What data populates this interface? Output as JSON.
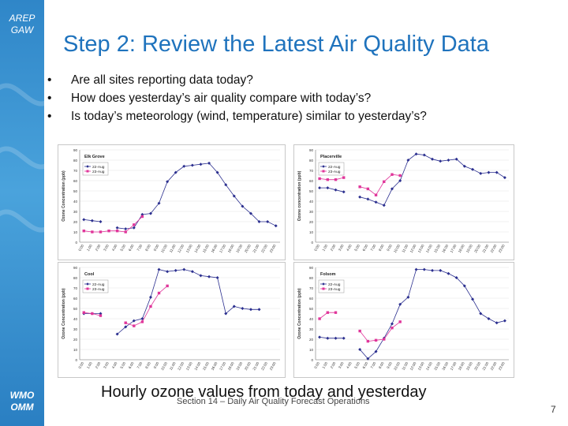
{
  "branding": {
    "top_logo": [
      "AREP",
      "GAW"
    ],
    "bottom_logo": [
      "WMO",
      "OMM"
    ]
  },
  "title": "Step 2:  Review the Latest Air Quality Data",
  "bullets": [
    "Are all sites reporting data today?",
    "How does yesterday’s air quality compare with today’s?",
    "Is today’s meteorology (wind, temperature) similar to yesterday’s?"
  ],
  "caption": "Hourly ozone values from today and yesterday",
  "footer": "Section 14 – Daily Air Quality Forecast Operations",
  "page_number": "7",
  "chart_data": [
    {
      "type": "line",
      "title": "Elk Grove",
      "ylabel": "Ozone Concentration (ppb)",
      "ylim": [
        0,
        90
      ],
      "yticks": [
        0,
        10,
        20,
        30,
        40,
        50,
        60,
        70,
        80,
        90
      ],
      "x": [
        "0:00",
        "1:00",
        "2:00",
        "3:00",
        "4:00",
        "5:00",
        "6:00",
        "7:00",
        "8:00",
        "9:00",
        "10:00",
        "11:00",
        "12:00",
        "13:00",
        "14:00",
        "15:00",
        "16:00",
        "17:00",
        "18:00",
        "19:00",
        "20:00",
        "21:00",
        "22:00",
        "23:00"
      ],
      "series": [
        {
          "name": "22-Aug",
          "color": "#2b2f8f",
          "marker": "diamond",
          "values": [
            22,
            21,
            20,
            null,
            14,
            13,
            14,
            27,
            28,
            38,
            59,
            68,
            74,
            75,
            76,
            77,
            68,
            56,
            45,
            35,
            28,
            20,
            20,
            16
          ]
        },
        {
          "name": "23-Aug",
          "color": "#e0359a",
          "marker": "square",
          "values": [
            11,
            10,
            10,
            11,
            11,
            10,
            17,
            25,
            null,
            null,
            null,
            null,
            null,
            null,
            null,
            null,
            null,
            null,
            null,
            null,
            null,
            null,
            null,
            null
          ]
        }
      ]
    },
    {
      "type": "line",
      "title": "Placerville",
      "ylabel": "Ozone concentration (ppb)",
      "ylim": [
        0,
        90
      ],
      "yticks": [
        0,
        10,
        20,
        30,
        40,
        50,
        60,
        70,
        80,
        90
      ],
      "x": [
        "0:00",
        "1:00",
        "2:00",
        "3:00",
        "4:00",
        "5:00",
        "6:00",
        "7:00",
        "8:00",
        "9:00",
        "10:00",
        "11:00",
        "12:00",
        "13:00",
        "14:00",
        "15:00",
        "16:00",
        "17:00",
        "18:00",
        "19:00",
        "20:00",
        "21:00",
        "22:00",
        "23:00"
      ],
      "series": [
        {
          "name": "22-Aug",
          "color": "#2b2f8f",
          "marker": "diamond",
          "values": [
            53,
            53,
            51,
            49,
            null,
            44,
            42,
            39,
            36,
            52,
            60,
            80,
            86,
            85,
            81,
            79,
            80,
            81,
            74,
            71,
            67,
            68,
            68,
            63
          ]
        },
        {
          "name": "23-Aug",
          "color": "#e0359a",
          "marker": "square",
          "values": [
            62,
            61,
            61,
            63,
            null,
            54,
            52,
            46,
            59,
            66,
            65,
            null,
            null,
            null,
            null,
            null,
            null,
            null,
            null,
            null,
            null,
            null,
            null,
            null
          ]
        }
      ]
    },
    {
      "type": "line",
      "title": "Cool",
      "ylabel": "Ozone Concentration (ppb)",
      "ylim": [
        0,
        90
      ],
      "yticks": [
        0,
        10,
        20,
        30,
        40,
        50,
        60,
        70,
        80,
        90
      ],
      "x": [
        "0:00",
        "1:00",
        "2:00",
        "3:00",
        "4:00",
        "5:00",
        "6:00",
        "7:00",
        "8:00",
        "9:00",
        "10:00",
        "11:00",
        "12:00",
        "13:00",
        "14:00",
        "15:00",
        "16:00",
        "17:00",
        "18:00",
        "19:00",
        "20:00",
        "21:00",
        "22:00",
        "23:00"
      ],
      "series": [
        {
          "name": "22-Aug",
          "color": "#2b2f8f",
          "marker": "diamond",
          "values": [
            45,
            45,
            45,
            null,
            25,
            32,
            38,
            40,
            61,
            88,
            86,
            87,
            88,
            86,
            82,
            81,
            80,
            45,
            52,
            50,
            49,
            49,
            null,
            null
          ]
        },
        {
          "name": "23-Aug",
          "color": "#e0359a",
          "marker": "square",
          "values": [
            46,
            45,
            43,
            null,
            null,
            36,
            33,
            37,
            52,
            65,
            72,
            null,
            null,
            null,
            null,
            null,
            null,
            null,
            null,
            null,
            null,
            null,
            null,
            null
          ]
        }
      ]
    },
    {
      "type": "line",
      "title": "Folsom",
      "ylabel": "Ozone Concentration (ppb)",
      "ylim": [
        0,
        90
      ],
      "yticks": [
        0,
        10,
        20,
        30,
        40,
        50,
        60,
        70,
        80,
        90
      ],
      "x": [
        "0:00",
        "1:00",
        "2:00",
        "3:00",
        "4:00",
        "5:00",
        "6:00",
        "7:00",
        "8:00",
        "9:00",
        "10:00",
        "11:00",
        "12:00",
        "13:00",
        "14:00",
        "15:00",
        "16:00",
        "17:00",
        "18:00",
        "19:00",
        "20:00",
        "21:00",
        "22:00",
        "23:00"
      ],
      "series": [
        {
          "name": "22-Aug",
          "color": "#2b2f8f",
          "marker": "diamond",
          "values": [
            22,
            21,
            21,
            21,
            null,
            10,
            1,
            8,
            21,
            35,
            54,
            61,
            88,
            88,
            87,
            87,
            84,
            80,
            72,
            59,
            45,
            40,
            36,
            38
          ]
        },
        {
          "name": "23-Aug",
          "color": "#e0359a",
          "marker": "square",
          "values": [
            40,
            46,
            46,
            null,
            null,
            28,
            18,
            19,
            20,
            31,
            37,
            null,
            null,
            null,
            null,
            null,
            null,
            null,
            null,
            null,
            null,
            null,
            null,
            null
          ]
        }
      ]
    }
  ]
}
